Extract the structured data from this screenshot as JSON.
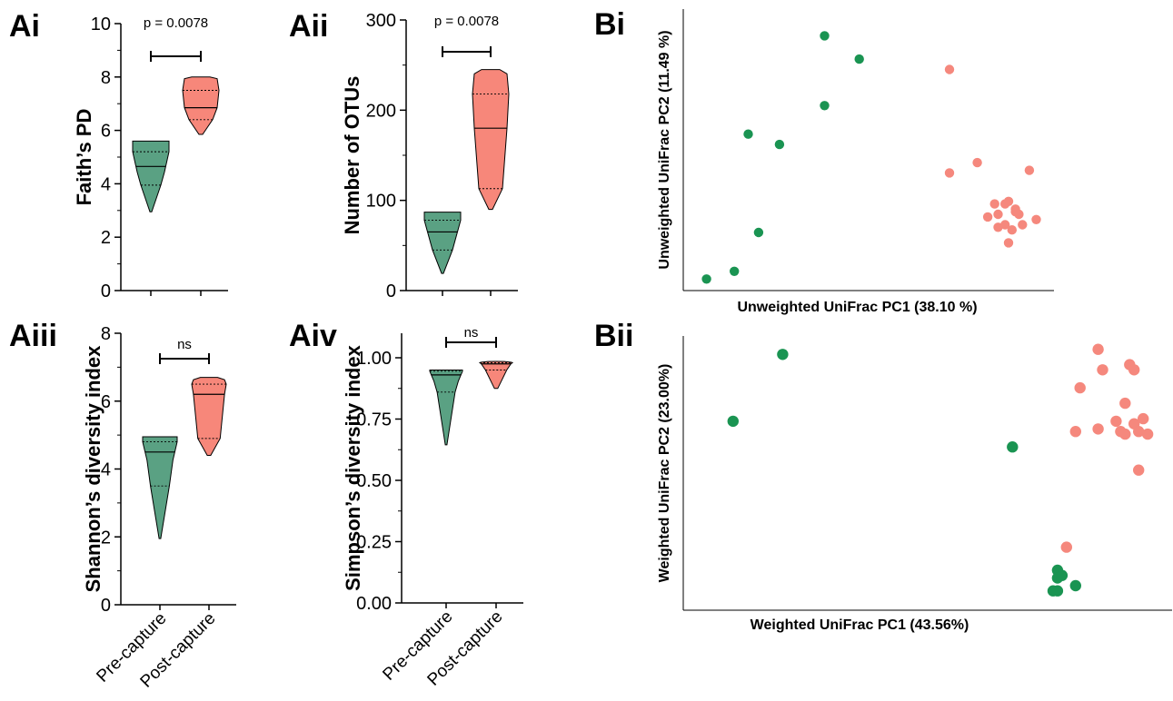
{
  "colors": {
    "pre": "#5aa183",
    "post": "#f7877a",
    "pre_point": "#1a9452",
    "post_point": "#f5887d"
  },
  "categories": [
    "Pre-capture",
    "Post-capture"
  ],
  "chart_data": [
    {
      "id": "Ai",
      "panel_label": "Ai",
      "type": "violin",
      "ylabel": "Faith’s  PD",
      "ylim": [
        0,
        10
      ],
      "yticks": [
        "0",
        "2",
        "4",
        "6",
        "8",
        "10"
      ],
      "ytick_values": [
        0,
        2,
        4,
        6,
        8,
        10
      ],
      "annotation": "p = 0.0078",
      "series": [
        {
          "min": 2.95,
          "q1": 3.95,
          "median": 4.65,
          "q3": 5.2,
          "max": 5.6
        },
        {
          "min": 5.85,
          "q1": 6.4,
          "median": 6.85,
          "q3": 7.5,
          "max": 8.0
        }
      ]
    },
    {
      "id": "Aii",
      "panel_label": "Aii",
      "type": "violin",
      "ylabel": "Number of OTUs",
      "ylim": [
        0,
        300
      ],
      "yticks": [
        "0",
        "100",
        "200",
        "300"
      ],
      "ytick_values": [
        0,
        100,
        200,
        300
      ],
      "annotation": "p = 0.0078",
      "series": [
        {
          "min": 19,
          "q1": 45,
          "median": 65,
          "q3": 78,
          "max": 87
        },
        {
          "min": 90,
          "q1": 113,
          "median": 180,
          "q3": 218,
          "max": 245
        }
      ]
    },
    {
      "id": "Aiii",
      "panel_label": "Aiii",
      "type": "violin",
      "ylabel": "Shannon’s diversity index",
      "ylim": [
        0,
        8
      ],
      "yticks": [
        "0",
        "2",
        "4",
        "6",
        "8"
      ],
      "ytick_values": [
        0,
        2,
        4,
        6,
        8
      ],
      "annotation": "ns",
      "series": [
        {
          "min": 1.95,
          "q1": 3.5,
          "median": 4.5,
          "q3": 4.8,
          "max": 4.95
        },
        {
          "min": 4.4,
          "q1": 4.9,
          "median": 6.2,
          "q3": 6.5,
          "max": 6.7
        }
      ]
    },
    {
      "id": "Aiv",
      "panel_label": "Aiv",
      "type": "violin",
      "ylabel": "Simpson’s diversity index",
      "ylim": [
        0,
        1.1
      ],
      "yticks": [
        "0.00",
        "0.25",
        "0.50",
        "0.75",
        "1.00"
      ],
      "ytick_values": [
        0,
        0.25,
        0.5,
        0.75,
        1.0
      ],
      "annotation": "ns",
      "series": [
        {
          "min": 0.645,
          "q1": 0.86,
          "median": 0.93,
          "q3": 0.945,
          "max": 0.95
        },
        {
          "min": 0.875,
          "q1": 0.95,
          "median": 0.975,
          "q3": 0.98,
          "max": 0.985
        }
      ]
    },
    {
      "id": "Bi",
      "panel_label": "Bi",
      "type": "scatter",
      "xlabel": "Unweighted UniFrac PC1 (38.10 %)",
      "ylabel": "Unweighted UniFrac PC2 (11.49 %)",
      "series": [
        {
          "group": "pre",
          "points": [
            [
              0.02,
              0.98
            ],
            [
              0.1,
              0.95
            ],
            [
              0.17,
              0.8
            ],
            [
              0.14,
              0.42
            ],
            [
              0.23,
              0.46
            ],
            [
              0.36,
              0.31
            ],
            [
              0.46,
              0.13
            ],
            [
              0.36,
              0.04
            ]
          ]
        },
        {
          "group": "post",
          "points": [
            [
              0.72,
              0.57
            ],
            [
              0.8,
              0.53
            ],
            [
              0.83,
              0.74
            ],
            [
              0.86,
              0.78
            ],
            [
              0.91,
              0.71
            ],
            [
              0.93,
              0.77
            ],
            [
              0.89,
              0.68
            ],
            [
              0.91,
              0.72
            ],
            [
              0.95,
              0.56
            ],
            [
              0.97,
              0.75
            ],
            [
              0.85,
              0.69
            ],
            [
              0.86,
              0.73
            ],
            [
              0.88,
              0.69
            ],
            [
              0.88,
              0.77
            ],
            [
              0.9,
              0.79
            ],
            [
              0.92,
              0.73
            ],
            [
              0.89,
              0.84
            ],
            [
              0.72,
              0.17
            ]
          ]
        }
      ]
    },
    {
      "id": "Bii",
      "panel_label": "Bii",
      "type": "scatter",
      "xlabel": "Weighted UniFrac PC1 (43.56%)",
      "ylabel": "Weighted UniFrac PC2 (23.00%)",
      "series": [
        {
          "group": "pre",
          "points": [
            [
              0.16,
              0.04
            ],
            [
              0.05,
              0.3
            ],
            [
              0.67,
              0.4
            ],
            [
              0.77,
              0.88
            ],
            [
              0.77,
              0.91
            ],
            [
              0.78,
              0.9
            ],
            [
              0.77,
              0.96
            ],
            [
              0.76,
              0.96
            ],
            [
              0.81,
              0.94
            ]
          ]
        },
        {
          "group": "post",
          "points": [
            [
              0.86,
              0.02
            ],
            [
              0.82,
              0.17
            ],
            [
              0.87,
              0.1
            ],
            [
              0.93,
              0.08
            ],
            [
              0.94,
              0.1
            ],
            [
              0.92,
              0.23
            ],
            [
              0.9,
              0.3
            ],
            [
              0.94,
              0.31
            ],
            [
              0.96,
              0.29
            ],
            [
              0.91,
              0.34
            ],
            [
              0.92,
              0.35
            ],
            [
              0.86,
              0.33
            ],
            [
              0.81,
              0.34
            ],
            [
              0.95,
              0.34
            ],
            [
              0.97,
              0.35
            ],
            [
              0.95,
              0.49
            ],
            [
              0.79,
              0.79
            ]
          ]
        }
      ]
    }
  ]
}
